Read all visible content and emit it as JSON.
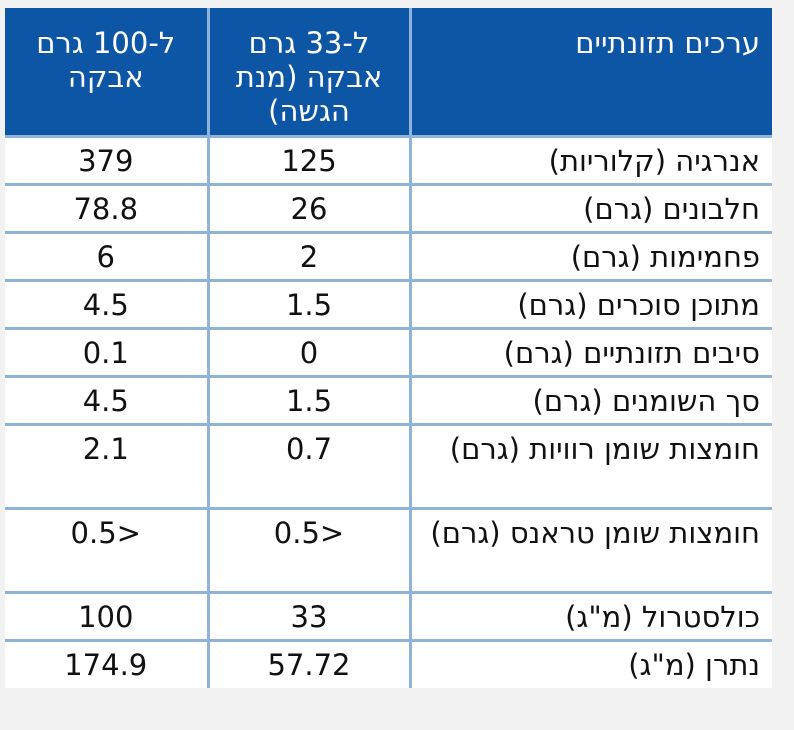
{
  "header": {
    "col_nutrient": "ערכים תזונתיים",
    "col_serving": "ל-33 גרם אבקה (מנת הגשה)",
    "col_100g": "ל-100 גרם אבקה"
  },
  "colors": {
    "header_bg": "#0d56a5",
    "border": "#8fb3d9",
    "page_bg": "#f2f2f2"
  },
  "rows": [
    {
      "label": "אנרגיה (קלוריות)",
      "serving": "125",
      "per100": "379"
    },
    {
      "label": "חלבונים (גרם)",
      "serving": "26",
      "per100": "78.8"
    },
    {
      "label": "פחמימות (גרם)",
      "serving": "2",
      "per100": "6"
    },
    {
      "label": "מתוכן סוכרים (גרם)",
      "serving": "1.5",
      "per100": "4.5"
    },
    {
      "label": "סיבים תזונתיים (גרם)",
      "serving": "0",
      "per100": "0.1"
    },
    {
      "label": "סך השומנים (גרם)",
      "serving": "1.5",
      "per100": "4.5"
    },
    {
      "label": "חומצות שומן רוויות (גרם)",
      "serving": "0.7",
      "per100": "2.1"
    },
    {
      "label": "חומצות שומן טראנס (גרם)",
      "serving": "<0.5",
      "per100": "<0.5"
    },
    {
      "label": "כולסטרול (מ\"ג)",
      "serving": "33",
      "per100": "100"
    },
    {
      "label": "נתרן (מ\"ג)",
      "serving": "57.72",
      "per100": "174.9"
    }
  ]
}
